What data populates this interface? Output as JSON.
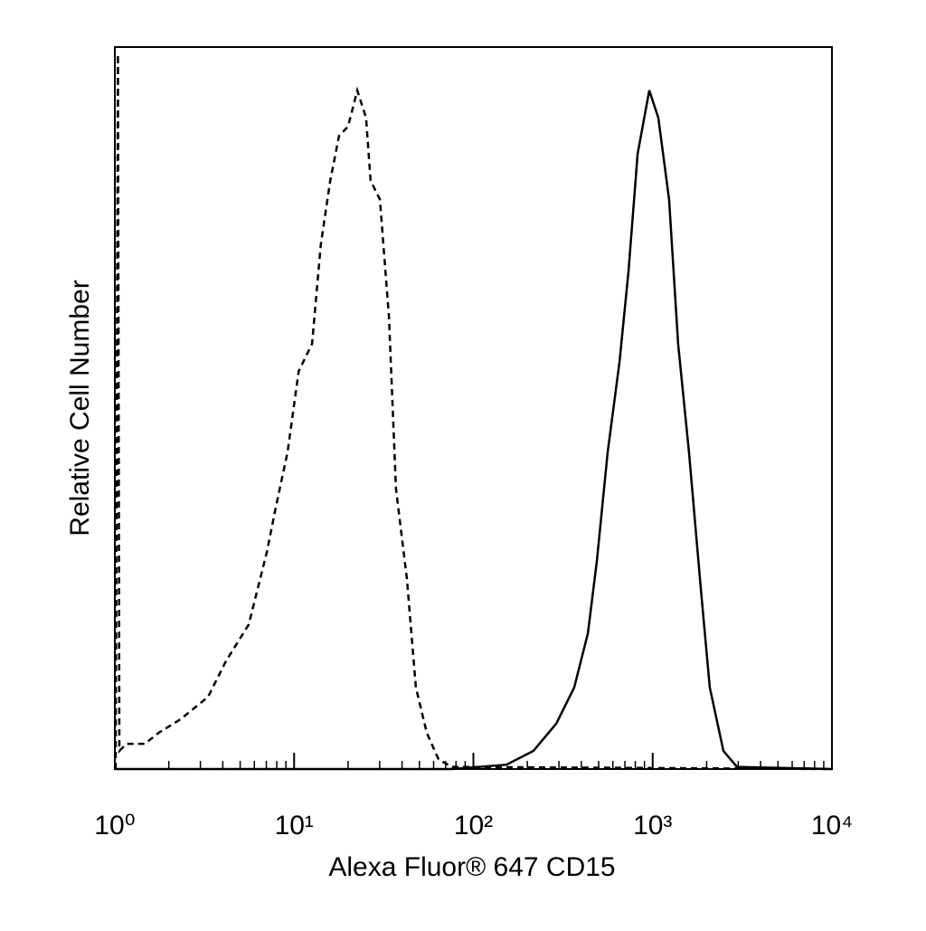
{
  "chart_data": {
    "type": "line",
    "x_label": "Alexa Fluor® 647 CD15",
    "y_label": "Relative Cell Number",
    "xscale": "log",
    "xlim": [
      1,
      10000
    ],
    "ylim": [
      0,
      100
    ],
    "xticks": [
      {
        "value": 1,
        "label": "10⁰"
      },
      {
        "value": 10,
        "label": "10¹"
      },
      {
        "value": 100,
        "label": "10²"
      },
      {
        "value": 1000,
        "label": "10³"
      },
      {
        "value": 10000,
        "label": "10⁴"
      }
    ],
    "xminorticks": [
      2,
      3,
      4,
      5,
      6,
      7,
      8,
      9,
      20,
      30,
      40,
      50,
      60,
      70,
      80,
      90,
      200,
      300,
      400,
      500,
      600,
      700,
      800,
      900,
      2000,
      3000,
      4000,
      5000,
      6000,
      7000,
      8000,
      9000
    ],
    "series": [
      {
        "color": "#000000",
        "line_style": "dashed",
        "x": [
          1.01,
          1.04,
          1.06,
          1.16,
          1.47,
          1.75,
          2.33,
          3.31,
          4.18,
          5.58,
          7.04,
          7.91,
          9.19,
          10.6,
          12.6,
          14.1,
          15.9,
          17.8,
          20.0,
          22.5,
          25.2,
          26.7,
          30.1,
          33.8,
          37.0,
          42.6,
          47.8,
          55.0,
          64.0,
          76.1,
          10000
        ],
        "values": [
          0,
          99,
          2.5,
          3.5,
          3.5,
          5,
          6.9,
          10,
          15,
          20,
          30,
          36.3,
          43.9,
          55.1,
          58.9,
          72.7,
          81.5,
          87.7,
          89,
          94,
          90.2,
          81.5,
          78.9,
          62.7,
          38.8,
          26.3,
          11.3,
          5,
          1.3,
          0.3,
          0
        ]
      },
      {
        "color": "#000000",
        "line_style": "solid",
        "x": [
          1,
          76.1,
          153,
          216,
          290,
          365,
          435,
          488,
          561,
          653,
          733,
          824,
          957,
          1075,
          1235,
          1387,
          1595,
          1854,
          2083,
          2482,
          2952,
          10000
        ],
        "values": [
          0,
          0,
          0.6,
          2.5,
          6.3,
          11.3,
          18.8,
          28.8,
          43.9,
          56.4,
          68.9,
          85.2,
          94,
          90.2,
          78.9,
          58.9,
          43.9,
          25.1,
          11.3,
          2.5,
          0.3,
          0
        ]
      }
    ]
  }
}
